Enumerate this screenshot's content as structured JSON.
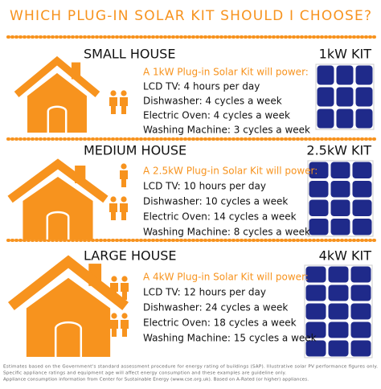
{
  "header": {
    "title": "WHICH PLUG-IN SOLAR KIT SHOULD I CHOOSE?"
  },
  "sections": [
    {
      "name": "SMALL HOUSE",
      "kit": "1kW KIT",
      "intro": "A 1kW Plug-in Solar Kit will power:",
      "items": [
        "LCD TV: 4 hours per day",
        "Dishwasher: 4 cycles a week",
        "Electric Oven: 4 cycles a week",
        "Washing Machine: 3 cycles a week"
      ]
    },
    {
      "name": "MEDIUM HOUSE",
      "kit": "2.5kW KIT",
      "intro": "A 2.5kW Plug-in Solar Kit will power:",
      "items": [
        "LCD TV: 10 hours per day",
        "Dishwasher: 10 cycles a week",
        "Electric Oven: 14 cycles a week",
        "Washing Machine: 8 cycles a week"
      ]
    },
    {
      "name": "LARGE HOUSE",
      "kit": "4kW KIT",
      "intro": "A 4kW Plug-in Solar Kit will power:",
      "items": [
        "LCD TV: 12 hours per day",
        "Dishwasher: 24 cycles a week",
        "Electric Oven: 18 cycles a week",
        "Washing Machine: 15 cycles a week"
      ]
    }
  ],
  "footnote": [
    "Estimates based on the Government's standard assessment procedure for energy rating of buildings (SAP). Illustrative solar PV performance figures only.",
    "Specific appliance ratings and equipment age will affect energy consumption and these examples are guideline only.",
    "Appliance consumption information from Center for Sustainable Energy (www.cse.org.uk). Based on A-Rated (or higher) appliances."
  ]
}
